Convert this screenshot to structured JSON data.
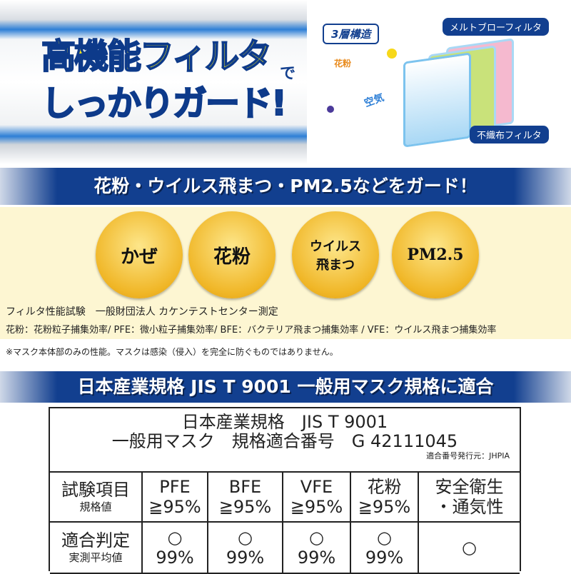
{
  "hero": {
    "line1": "高機能フィルタ",
    "de": "で",
    "line2": "しっかりガード!"
  },
  "diagram": {
    "badge": "3層構造",
    "pollen": "花粉",
    "air": "空気",
    "top_label": "メルトブローフィルタ",
    "bottom_label": "不織布フィルタ",
    "colors": {
      "layer1": "#a9d8f5",
      "layer2": "#c9e27a",
      "layer3": "#f5b9cf"
    }
  },
  "band1": "花粉・ウイルス飛まつ・PM2.5などをガード！",
  "circles": [
    "かぜ",
    "花粉",
    "ウイルス飛まつ",
    "PM2.5"
  ],
  "test_info": "フィルタ性能試験　一般財団法人 カケンテストセンター測定",
  "definitions": "花粉：花粉粒子捕集効率/ PFE：微小粒子捕集効率/ BFE：バクテリア飛まつ捕集効率 / VFE：ウイルス飛まつ捕集効率",
  "note": "※マスク本体部のみの性能。マスクは感染（侵入）を完全に防ぐものではありません。",
  "band2": "日本産業規格 JIS T 9001 一般用マスク規格に適合",
  "table": {
    "title1": "日本産業規格　JIS T 9001",
    "title2": "一般用マスク　規格適合番号　G 42111045",
    "issuer": "適合番号発行元：JHPIA",
    "row1": {
      "head": "試験項目",
      "head_sub": "規格値",
      "cells": [
        [
          "PFE",
          "≧95%"
        ],
        [
          "BFE",
          "≧95%"
        ],
        [
          "VFE",
          "≧95%"
        ],
        [
          "花粉",
          "≧95%"
        ],
        [
          "安全衛生",
          "・通気性"
        ]
      ]
    },
    "row2": {
      "head": "適合判定",
      "head_sub": "実測平均値",
      "cells": [
        [
          "○",
          "99%"
        ],
        [
          "○",
          "99%"
        ],
        [
          "○",
          "99%"
        ],
        [
          "○",
          "99%"
        ],
        [
          "○",
          ""
        ]
      ]
    }
  },
  "colors": {
    "navy": "#123f8f",
    "gold": "#f0b626",
    "cream": "#fdf6d2",
    "yellow_text": "#f7e81a"
  }
}
